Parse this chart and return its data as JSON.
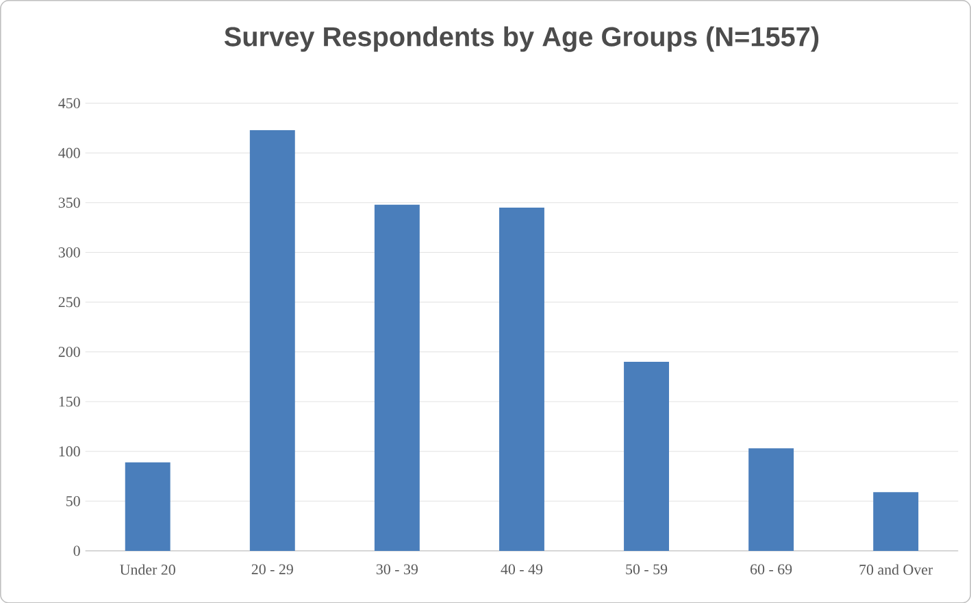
{
  "chart_data": {
    "type": "bar",
    "title": "Survey Respondents by Age Groups (N=1557)",
    "categories": [
      "Under 20",
      "20 - 29",
      "30 - 39",
      "40 - 49",
      "50 - 59",
      "60 - 69",
      "70 and Over"
    ],
    "values": [
      89,
      423,
      348,
      345,
      190,
      103,
      59
    ],
    "color": "#4a7ebb",
    "ylim": [
      0,
      450
    ],
    "yticks": [
      0,
      50,
      100,
      150,
      200,
      250,
      300,
      350,
      400,
      450
    ],
    "grid": "y"
  }
}
